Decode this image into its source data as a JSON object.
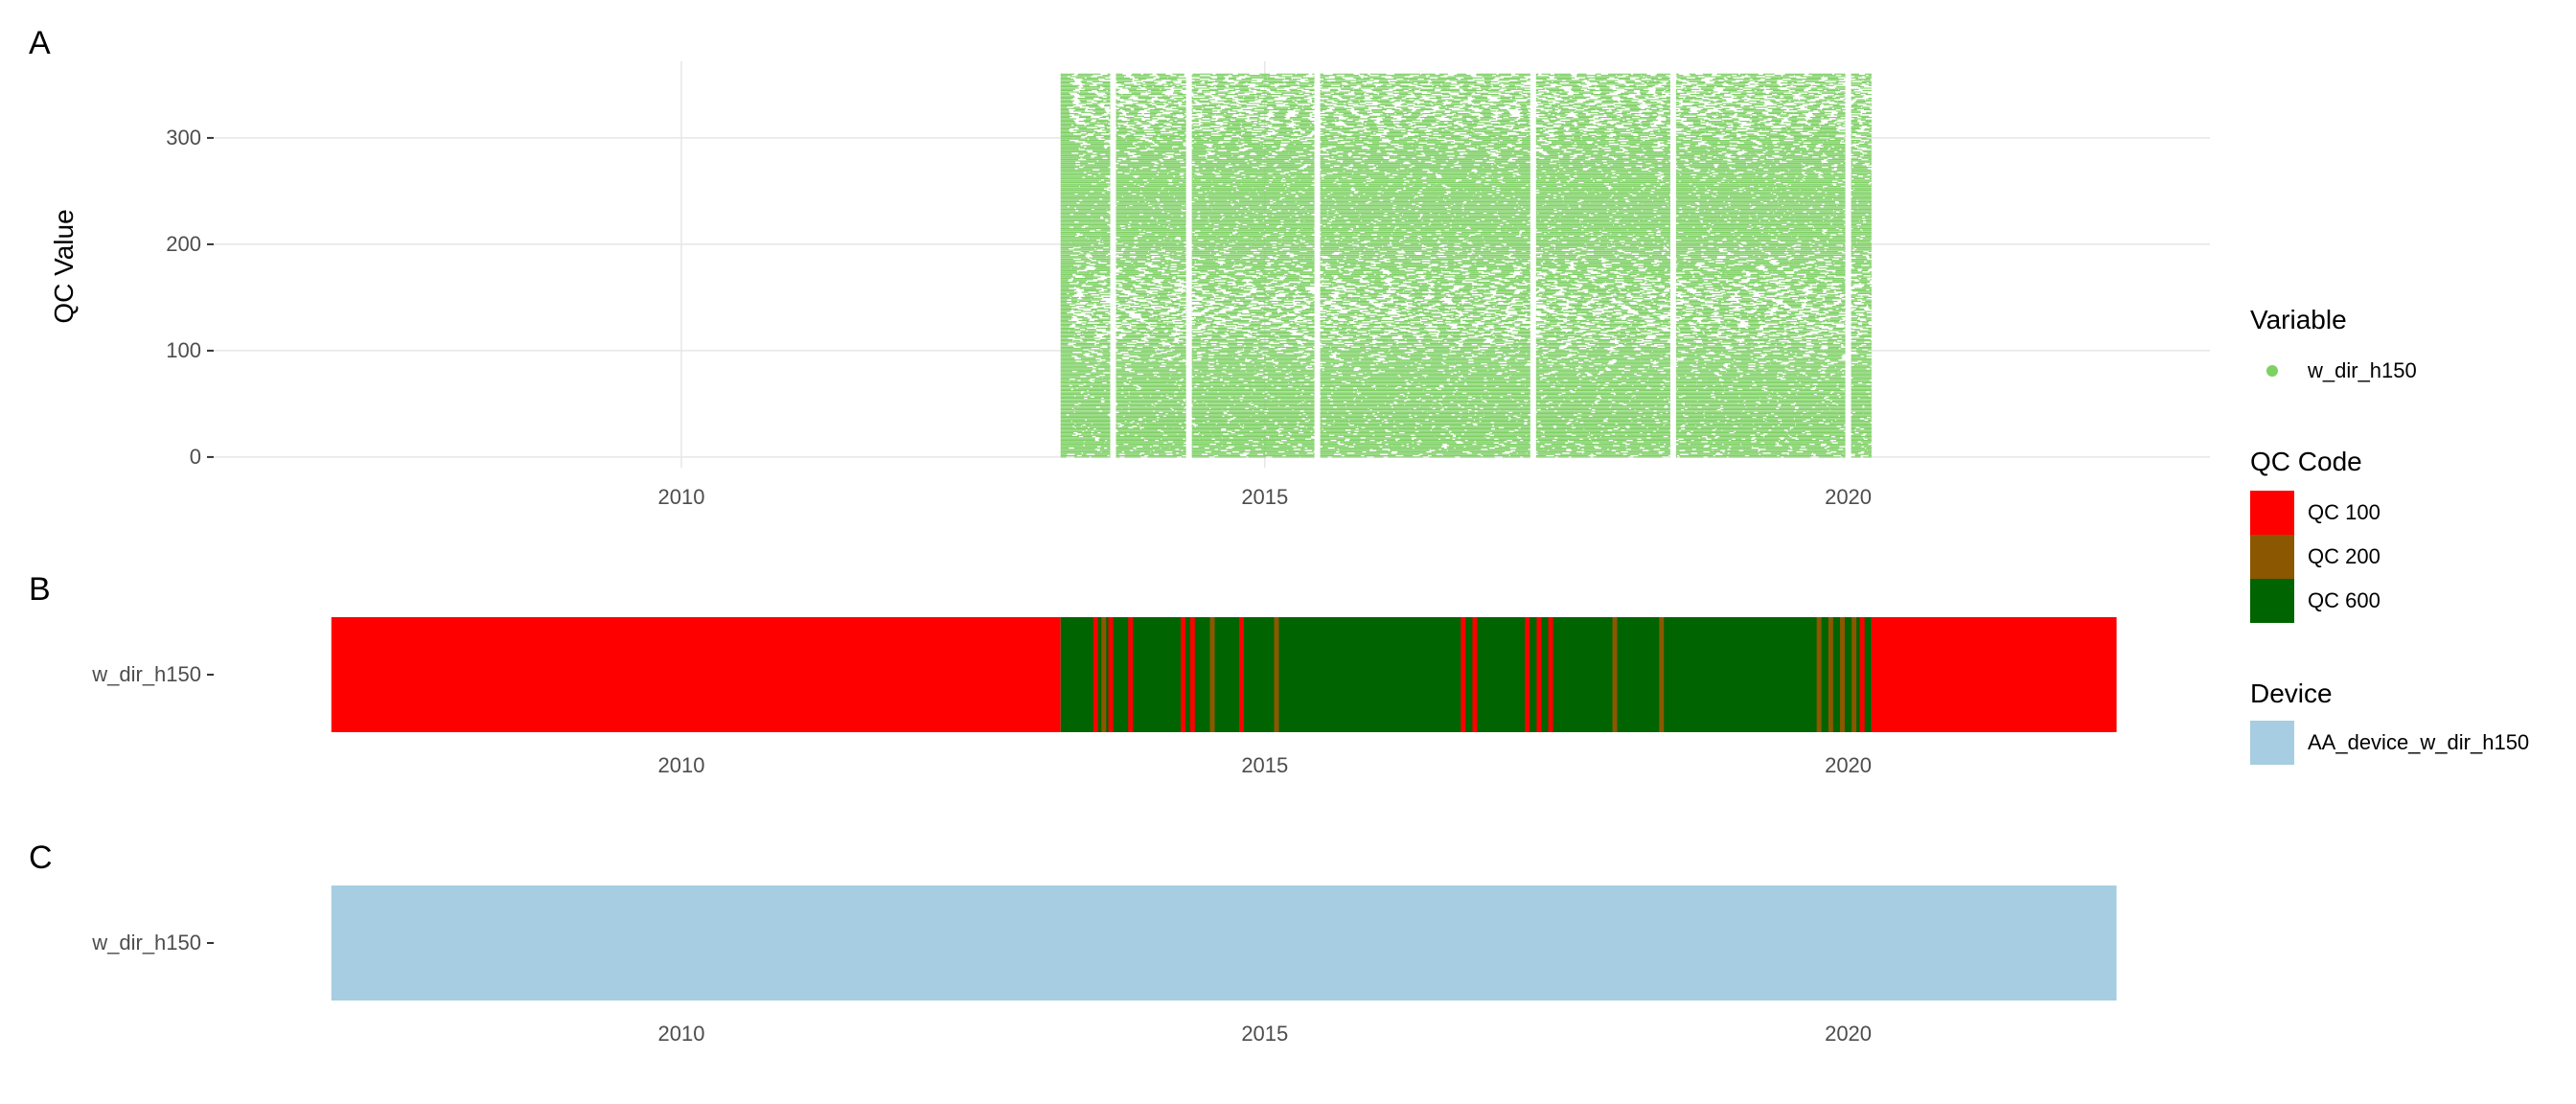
{
  "panels": {
    "a": {
      "label": "A"
    },
    "b": {
      "label": "B"
    },
    "c": {
      "label": "C"
    }
  },
  "legends": {
    "variable": {
      "title": "Variable",
      "items": [
        {
          "label": "w_dir_h150",
          "color": "#7fd065"
        }
      ]
    },
    "qc_code": {
      "title": "QC Code",
      "items": [
        {
          "label": "QC 100",
          "color": "#ff0000"
        },
        {
          "label": "QC 200",
          "color": "#8b5700"
        },
        {
          "label": "QC 600",
          "color": "#006400"
        }
      ]
    },
    "device": {
      "title": "Device",
      "items": [
        {
          "label": "AA_device_w_dir_h150",
          "color": "#a6cde1"
        }
      ]
    }
  },
  "chart_data": [
    {
      "panel": "A",
      "type": "scatter",
      "ylabel": "QC Value",
      "xlabel": "",
      "xlim": [
        2006.0,
        2023.1
      ],
      "ylim": [
        -10,
        372
      ],
      "xticks": [
        2010,
        2015,
        2020
      ],
      "yticks": [
        0,
        100,
        200,
        300
      ],
      "grid": true,
      "series": [
        {
          "name": "w_dir_h150",
          "color": "#7fd065",
          "x_range": [
            2013.25,
            2020.2
          ],
          "y_range": [
            0,
            360
          ]
        }
      ],
      "gaps": [
        2013.7,
        2014.35,
        2015.45,
        2017.3,
        2018.5,
        2020.0
      ]
    },
    {
      "panel": "B",
      "type": "timeline",
      "category": "w_dir_h150",
      "xlim": [
        2006.0,
        2023.1
      ],
      "xticks": [
        2010,
        2015,
        2020
      ],
      "segments": [
        {
          "start": 2007.0,
          "end": 2013.25,
          "code": "QC 100"
        },
        {
          "start": 2013.25,
          "end": 2020.2,
          "code": "QC 600"
        },
        {
          "start": 2020.2,
          "end": 2022.3,
          "code": "QC 100"
        }
      ],
      "stripes": [
        {
          "at": 2013.55,
          "code": "QC 100"
        },
        {
          "at": 2013.62,
          "code": "QC 200"
        },
        {
          "at": 2013.68,
          "code": "QC 100"
        },
        {
          "at": 2013.85,
          "code": "QC 100"
        },
        {
          "at": 2014.3,
          "code": "QC 100"
        },
        {
          "at": 2014.38,
          "code": "QC 100"
        },
        {
          "at": 2014.55,
          "code": "QC 200"
        },
        {
          "at": 2014.8,
          "code": "QC 100"
        },
        {
          "at": 2015.1,
          "code": "QC 200"
        },
        {
          "at": 2016.7,
          "code": "QC 100"
        },
        {
          "at": 2016.8,
          "code": "QC 100"
        },
        {
          "at": 2017.25,
          "code": "QC 100"
        },
        {
          "at": 2017.35,
          "code": "QC 100"
        },
        {
          "at": 2017.45,
          "code": "QC 100"
        },
        {
          "at": 2018.0,
          "code": "QC 200"
        },
        {
          "at": 2018.4,
          "code": "QC 200"
        },
        {
          "at": 2019.75,
          "code": "QC 200"
        },
        {
          "at": 2019.85,
          "code": "QC 200"
        },
        {
          "at": 2019.95,
          "code": "QC 200"
        },
        {
          "at": 2020.05,
          "code": "QC 200"
        },
        {
          "at": 2020.12,
          "code": "QC 100"
        }
      ]
    },
    {
      "panel": "C",
      "type": "timeline",
      "category": "w_dir_h150",
      "xlim": [
        2006.0,
        2023.1
      ],
      "xticks": [
        2010,
        2015,
        2020
      ],
      "segments": [
        {
          "start": 2007.0,
          "end": 2022.3,
          "device": "AA_device_w_dir_h150"
        }
      ]
    }
  ]
}
